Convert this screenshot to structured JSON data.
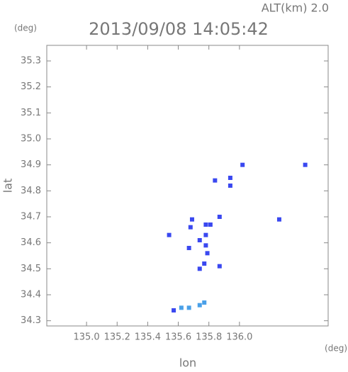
{
  "chart_data": {
    "type": "scatter",
    "annotation": "ALT(km) 2.0",
    "title": "2013/09/08 14:05:42",
    "y_unit": "(deg)",
    "x_unit": "(deg)",
    "y_label": "lat",
    "x_label": "lon",
    "xlim": [
      134.74,
      136.58
    ],
    "ylim": [
      34.28,
      35.36
    ],
    "xticks": [
      {
        "value": 135,
        "label": "135.0"
      },
      135.2,
      135.4,
      135.6,
      135.8,
      {
        "value": 136,
        "label": "136.0"
      }
    ],
    "yticks": [
      34.3,
      34.4,
      34.5,
      34.6,
      34.7,
      34.8,
      34.9,
      {
        "value": 35,
        "label": "35.0"
      },
      35.1,
      35.2,
      35.3
    ],
    "series": [
      {
        "color": "#3a48f0",
        "x": [
          135.54,
          135.69,
          135.68,
          135.78,
          135.78,
          135.81,
          135.87,
          135.67,
          135.78,
          135.79,
          135.77,
          135.74,
          135.87,
          135.84,
          135.94,
          135.94,
          136.02,
          136.26,
          136.43,
          135.74,
          135.57
        ],
        "y": [
          34.63,
          34.69,
          34.66,
          34.67,
          34.63,
          34.67,
          34.7,
          34.58,
          34.59,
          34.56,
          34.52,
          34.5,
          34.51,
          34.84,
          34.85,
          34.82,
          34.9,
          34.69,
          34.9,
          34.61,
          34.34
        ]
      },
      {
        "color": "#4aa0e8",
        "x": [
          135.62,
          135.67,
          135.74,
          135.77
        ],
        "y": [
          34.35,
          34.35,
          34.36,
          34.37
        ]
      }
    ]
  }
}
